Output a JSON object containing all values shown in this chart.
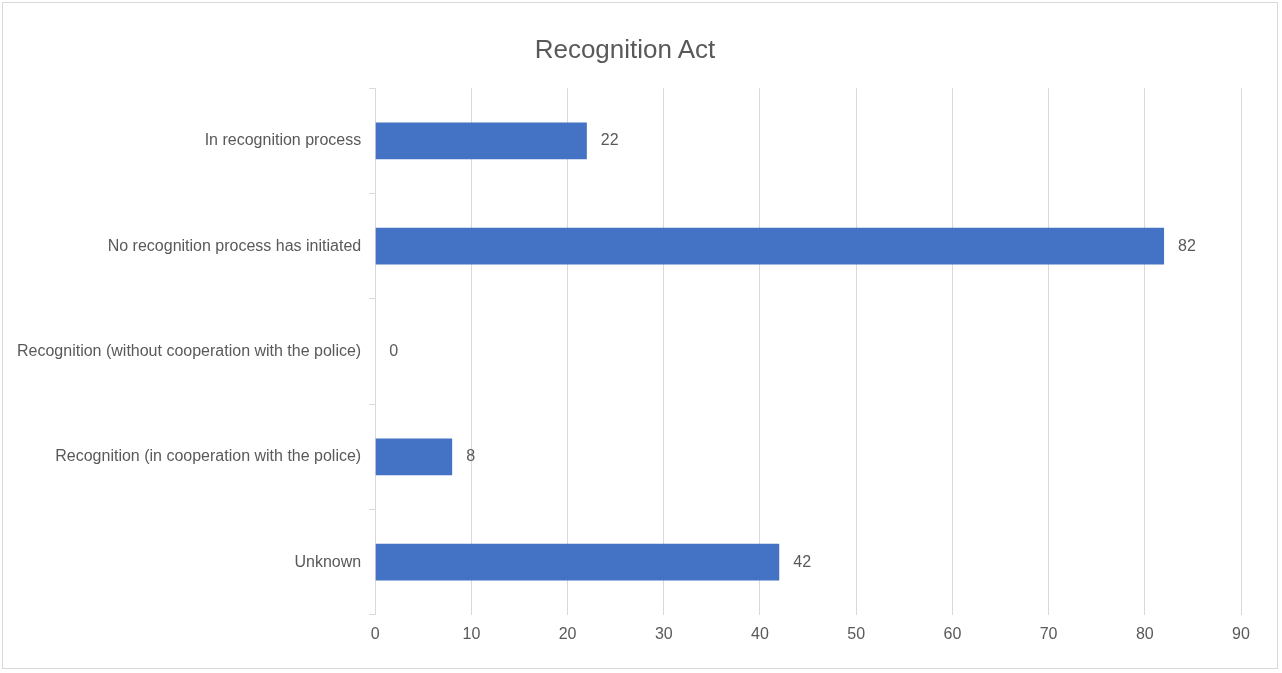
{
  "chart_data": {
    "type": "bar",
    "orientation": "horizontal",
    "title": "Recognition Act",
    "categories": [
      "In recognition process",
      "No recognition process has initiated",
      "Recognition (without cooperation with the police)",
      "Recognition (in cooperation with the police)",
      "Unknown"
    ],
    "values": [
      22,
      82,
      0,
      8,
      42
    ],
    "color": "#4472c4",
    "xlim": [
      0,
      90
    ],
    "xticks": [
      0,
      10,
      20,
      30,
      40,
      50,
      60,
      70,
      80,
      90
    ],
    "grid": "x",
    "data_labels": true
  }
}
